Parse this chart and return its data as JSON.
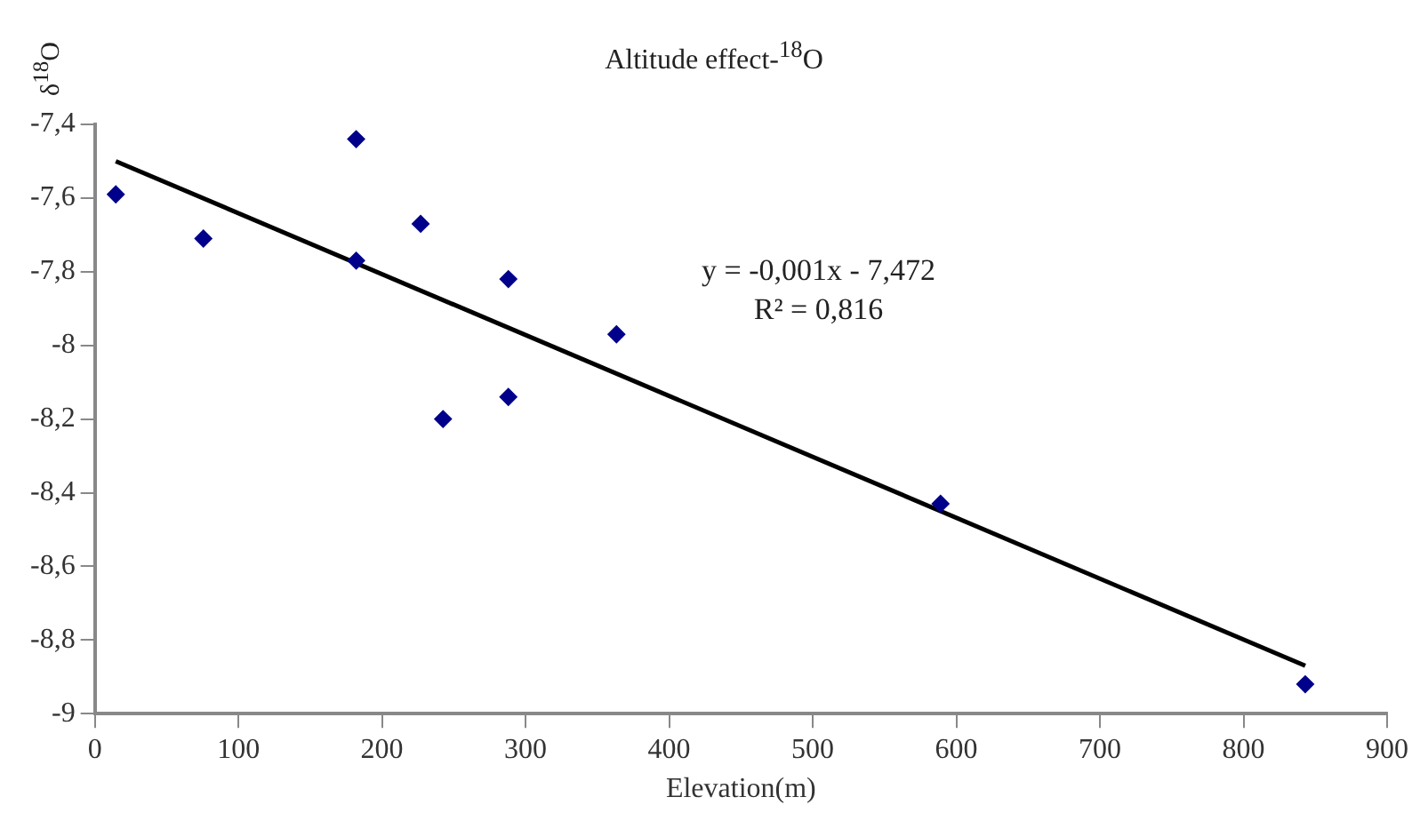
{
  "chart_data": {
    "type": "scatter",
    "title": "Altitude effect-$^{18}$O",
    "xlabel": "Elevation(m)",
    "ylabel": "δ$^{18}$O",
    "annotations": [
      "y = -0,001x - 7,472",
      "R² = 0,816"
    ],
    "series": [
      {
        "type": "scatter",
        "color": "#00008b",
        "marker": "diamond",
        "x": [
          14.6,
          75.6,
          182,
          182,
          226.9,
          288,
          363.3,
          242.5,
          288,
          589,
          843
        ],
        "values": [
          -7.59,
          -7.71,
          -7.44,
          -7.77,
          -7.67,
          -7.82,
          -7.97,
          -8.2,
          -8.14,
          -8.43,
          -8.92
        ]
      },
      {
        "type": "line",
        "color": "#000000",
        "marker": "none",
        "x": [
          14.6,
          843
        ],
        "values": [
          -7.5,
          -8.87
        ]
      }
    ],
    "xlim": [
      0,
      900
    ],
    "xticks": [
      0,
      100,
      200,
      300,
      400,
      500,
      600,
      700,
      800,
      900
    ],
    "ylim": [
      -9,
      -7.4
    ],
    "yticks": [
      {
        "value": -9,
        "label": "-9"
      },
      {
        "value": -8.8,
        "label": "-8,8"
      },
      {
        "value": -8.6,
        "label": "-8,6"
      },
      {
        "value": -8.4,
        "label": "-8,4"
      },
      {
        "value": -8.2,
        "label": "-8,2"
      },
      {
        "value": -8,
        "label": "-8"
      },
      {
        "value": -7.8,
        "label": "-7,8"
      },
      {
        "value": -7.6,
        "label": "-7,6"
      },
      {
        "value": -7.4,
        "label": "-7,4"
      }
    ],
    "grid": false,
    "legend": false
  }
}
